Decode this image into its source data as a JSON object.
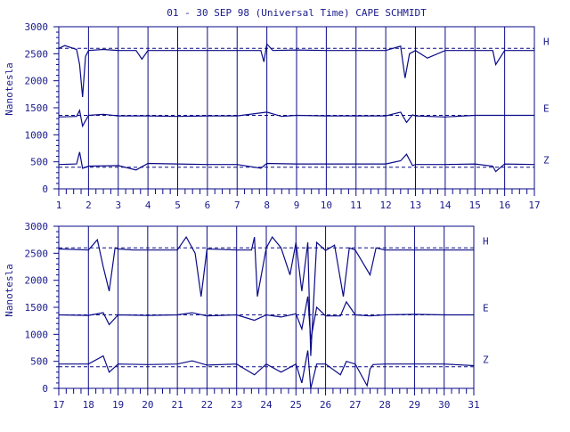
{
  "chart_data": [
    {
      "type": "line",
      "title": "01 - 30 SEP 98 (Universal Time) CAPE SCHMIDT",
      "ylabel": "Nanotesla",
      "xlabel": "",
      "xlim": [
        1,
        17
      ],
      "ylim": [
        0,
        3000
      ],
      "x_ticks": [
        "1",
        "2",
        "3",
        "4",
        "5",
        "6",
        "7",
        "8",
        "9",
        "10",
        "11",
        "12",
        "13",
        "14",
        "15",
        "16",
        "17"
      ],
      "y_ticks": [
        "0",
        "500",
        "1000",
        "1500",
        "2000",
        "2500",
        "3000"
      ],
      "grid": "vertical lines at each day",
      "baselines": {
        "H": 2600,
        "E": 1360,
        "Z": 400
      },
      "series": [
        {
          "name": "H",
          "x": [
            1,
            1.2,
            1.6,
            1.7,
            1.8,
            1.9,
            2,
            2.5,
            3,
            3.6,
            3.8,
            4,
            5,
            6,
            7,
            7.8,
            7.9,
            8,
            8.2,
            9,
            10,
            11,
            12,
            12.5,
            12.65,
            12.8,
            13,
            13.4,
            14,
            15,
            15.6,
            15.7,
            16,
            17
          ],
          "values": [
            2600,
            2650,
            2580,
            2300,
            1700,
            2450,
            2560,
            2580,
            2560,
            2560,
            2400,
            2560,
            2560,
            2560,
            2560,
            2560,
            2350,
            2680,
            2560,
            2570,
            2560,
            2560,
            2560,
            2640,
            2050,
            2500,
            2560,
            2420,
            2560,
            2560,
            2560,
            2300,
            2560,
            2560
          ]
        },
        {
          "name": "E",
          "x": [
            1,
            1.6,
            1.7,
            1.8,
            2,
            2.5,
            3,
            4,
            5,
            6,
            7,
            8,
            8.5,
            9,
            10,
            11,
            12,
            12.5,
            12.7,
            12.9,
            13,
            14,
            15,
            16,
            17
          ],
          "values": [
            1330,
            1340,
            1450,
            1160,
            1360,
            1380,
            1350,
            1350,
            1340,
            1350,
            1350,
            1420,
            1340,
            1360,
            1350,
            1350,
            1350,
            1420,
            1230,
            1370,
            1350,
            1330,
            1360,
            1360,
            1360
          ]
        },
        {
          "name": "Z",
          "x": [
            1,
            1.6,
            1.7,
            1.8,
            2,
            3,
            3.6,
            4,
            5,
            6,
            7,
            7.8,
            8,
            9,
            10,
            11,
            12,
            12.5,
            12.7,
            12.9,
            13,
            14,
            15,
            15.6,
            15.7,
            16,
            17
          ],
          "values": [
            450,
            460,
            680,
            380,
            420,
            430,
            350,
            470,
            460,
            450,
            450,
            380,
            470,
            460,
            460,
            460,
            460,
            520,
            640,
            430,
            450,
            450,
            460,
            420,
            320,
            460,
            450
          ]
        }
      ]
    },
    {
      "type": "line",
      "title": "",
      "ylabel": "Nanotesla",
      "xlabel": "",
      "xlim": [
        17,
        31
      ],
      "ylim": [
        0,
        3000
      ],
      "x_ticks": [
        "17",
        "18",
        "19",
        "20",
        "21",
        "22",
        "23",
        "24",
        "25",
        "26",
        "27",
        "28",
        "29",
        "30",
        "31"
      ],
      "y_ticks": [
        "0",
        "500",
        "1000",
        "1500",
        "2000",
        "2500",
        "3000"
      ],
      "grid": "vertical lines at each day",
      "baselines": {
        "H": 2600,
        "E": 1360,
        "Z": 400
      },
      "series": [
        {
          "name": "H",
          "x": [
            17,
            18,
            18.3,
            18.5,
            18.7,
            18.9,
            19,
            19.5,
            20,
            21,
            21.3,
            21.6,
            21.8,
            22,
            23,
            23.5,
            23.6,
            23.7,
            24,
            24.2,
            24.5,
            24.8,
            25,
            25.2,
            25.4,
            25.5,
            25.7,
            26,
            26.3,
            26.6,
            26.8,
            27,
            27.5,
            27.7,
            28,
            29,
            30,
            31
          ],
          "values": [
            2580,
            2560,
            2750,
            2250,
            1800,
            2600,
            2580,
            2560,
            2560,
            2560,
            2800,
            2500,
            1700,
            2580,
            2560,
            2560,
            2800,
            1700,
            2600,
            2800,
            2600,
            2100,
            2700,
            1800,
            2700,
            600,
            2700,
            2550,
            2650,
            1700,
            2600,
            2560,
            2100,
            2600,
            2560,
            2560,
            2560,
            2560
          ]
        },
        {
          "name": "E",
          "x": [
            17,
            18,
            18.5,
            18.7,
            19,
            20,
            21,
            21.5,
            22,
            23,
            23.6,
            24,
            24.5,
            25,
            25.2,
            25.4,
            25.5,
            25.7,
            26,
            26.5,
            26.7,
            27,
            27.5,
            28,
            29,
            30,
            31
          ],
          "values": [
            1360,
            1350,
            1400,
            1180,
            1360,
            1350,
            1360,
            1400,
            1340,
            1360,
            1260,
            1360,
            1320,
            1380,
            1100,
            1700,
            900,
            1500,
            1340,
            1340,
            1600,
            1360,
            1340,
            1360,
            1370,
            1360,
            1360
          ]
        },
        {
          "name": "Z",
          "x": [
            17,
            18,
            18.5,
            18.7,
            19,
            20,
            21,
            21.5,
            22,
            23,
            23.6,
            24,
            24.5,
            25,
            25.2,
            25.4,
            25.5,
            25.7,
            26,
            26.5,
            26.7,
            27,
            27.4,
            27.5,
            27.6,
            28,
            29,
            30,
            31
          ],
          "values": [
            450,
            450,
            600,
            300,
            450,
            440,
            450,
            510,
            430,
            450,
            250,
            450,
            300,
            450,
            100,
            700,
            0,
            450,
            450,
            250,
            500,
            450,
            50,
            360,
            440,
            450,
            450,
            450,
            420
          ]
        }
      ]
    }
  ]
}
